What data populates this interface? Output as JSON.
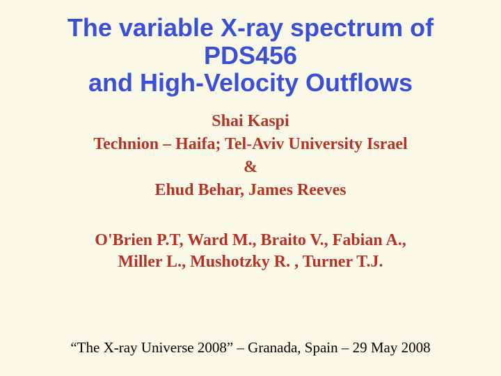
{
  "colors": {
    "background": "#faf9e8",
    "title": "#3a4fd4",
    "author_text": "#b43226",
    "venue_text": "#000000"
  },
  "title": {
    "text": "The variable X-ray spectrum of PDS456\nand High-Velocity Outflows",
    "fontsize": 36
  },
  "authors": {
    "line1": "Shai Kaspi",
    "line2": "Technion – Haifa; Tel-Aviv University Israel",
    "line3": "&",
    "line4": "Ehud Behar, James Reeves",
    "fontsize": 24
  },
  "collaborators": {
    "line1": "O'Brien P.T, Ward M., Braito V., Fabian A.,",
    "line2": "Miller L., Mushotzky R. , Turner T.J.",
    "fontsize": 24
  },
  "venue": {
    "text": "“The X-ray Universe 2008” – Granada, Spain –  29 May 2008",
    "fontsize": 21
  }
}
